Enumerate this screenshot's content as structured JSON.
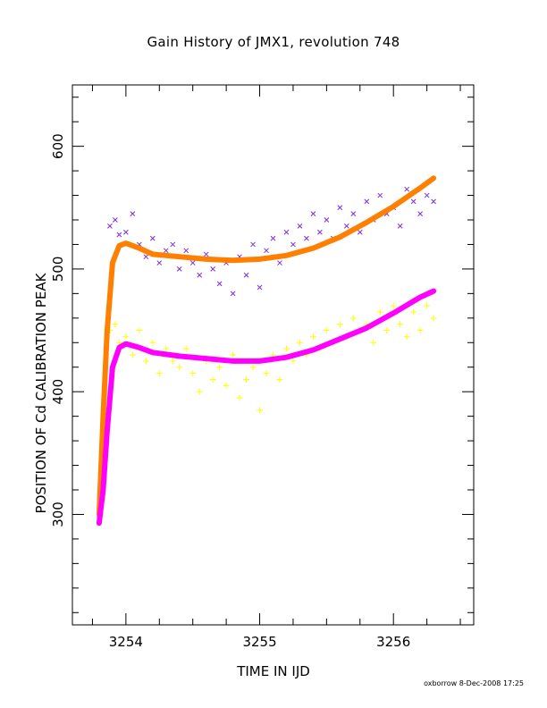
{
  "chart_data": {
    "type": "scatter",
    "title": "Gain History of JMX1, revolution 748",
    "xlabel": "TIME IN IJD",
    "ylabel": "POSITION OF Cd CALIBRATION PEAK",
    "xlim": [
      3253.6,
      3256.6
    ],
    "ylim": [
      210,
      650
    ],
    "xticks": [
      3254,
      3255,
      3256
    ],
    "yticks": [
      300,
      400,
      500,
      600
    ],
    "grid": false,
    "legend": "none",
    "series": [
      {
        "marker": "x",
        "color": "#7b2ee0",
        "x": [
          3253.88,
          3253.92,
          3253.95,
          3254.0,
          3254.05,
          3254.1,
          3254.15,
          3254.2,
          3254.25,
          3254.3,
          3254.35,
          3254.4,
          3254.45,
          3254.5,
          3254.55,
          3254.6,
          3254.65,
          3254.7,
          3254.75,
          3254.8,
          3254.85,
          3254.9,
          3254.95,
          3255.0,
          3255.05,
          3255.1,
          3255.15,
          3255.2,
          3255.25,
          3255.3,
          3255.35,
          3255.4,
          3255.45,
          3255.5,
          3255.55,
          3255.6,
          3255.65,
          3255.7,
          3255.75,
          3255.8,
          3255.85,
          3255.9,
          3255.95,
          3256.0,
          3256.05,
          3256.1,
          3256.15,
          3256.2,
          3256.25,
          3256.3
        ],
        "y": [
          535,
          540,
          528,
          530,
          545,
          520,
          510,
          525,
          505,
          515,
          520,
          500,
          515,
          505,
          495,
          512,
          500,
          488,
          505,
          480,
          510,
          495,
          520,
          485,
          515,
          525,
          505,
          530,
          520,
          535,
          525,
          545,
          530,
          540,
          525,
          550,
          535,
          545,
          530,
          555,
          540,
          560,
          545,
          550,
          535,
          565,
          555,
          545,
          560,
          555
        ]
      },
      {
        "marker": "+",
        "color": "#ffff00",
        "x": [
          3253.88,
          3253.92,
          3253.95,
          3254.0,
          3254.05,
          3254.1,
          3254.15,
          3254.2,
          3254.25,
          3254.3,
          3254.35,
          3254.4,
          3254.45,
          3254.5,
          3254.55,
          3254.6,
          3254.65,
          3254.7,
          3254.75,
          3254.8,
          3254.85,
          3254.9,
          3254.95,
          3255.0,
          3255.05,
          3255.1,
          3255.15,
          3255.2,
          3255.25,
          3255.3,
          3255.35,
          3255.4,
          3255.45,
          3255.5,
          3255.55,
          3255.6,
          3255.65,
          3255.7,
          3255.75,
          3255.8,
          3255.85,
          3255.9,
          3255.95,
          3256.0,
          3256.05,
          3256.1,
          3256.15,
          3256.2,
          3256.25,
          3256.3
        ],
        "y": [
          450,
          455,
          440,
          445,
          430,
          450,
          425,
          440,
          415,
          435,
          425,
          420,
          435,
          415,
          400,
          425,
          410,
          420,
          405,
          430,
          395,
          410,
          420,
          385,
          415,
          430,
          410,
          435,
          425,
          440,
          430,
          445,
          435,
          450,
          440,
          455,
          445,
          460,
          450,
          455,
          440,
          465,
          450,
          470,
          455,
          445,
          465,
          450,
          470,
          460
        ]
      },
      {
        "marker": "line",
        "color": "#ff7f00",
        "x": [
          3253.8,
          3253.83,
          3253.86,
          3253.9,
          3253.95,
          3254.0,
          3254.1,
          3254.2,
          3254.4,
          3254.6,
          3254.8,
          3255.0,
          3255.2,
          3255.4,
          3255.6,
          3255.8,
          3256.0,
          3256.2,
          3256.3
        ],
        "y": [
          300,
          380,
          450,
          505,
          519,
          521,
          517,
          512,
          510,
          508,
          507,
          508,
          511,
          517,
          526,
          538,
          551,
          566,
          574
        ]
      },
      {
        "marker": "line",
        "color": "#ff00ff",
        "x": [
          3253.8,
          3253.83,
          3253.86,
          3253.9,
          3253.95,
          3254.0,
          3254.1,
          3254.2,
          3254.4,
          3254.6,
          3254.8,
          3255.0,
          3255.2,
          3255.4,
          3255.6,
          3255.8,
          3256.0,
          3256.2,
          3256.3
        ],
        "y": [
          293,
          320,
          368,
          420,
          436,
          439,
          436,
          432,
          429,
          427,
          425,
          425,
          428,
          434,
          443,
          452,
          464,
          477,
          482
        ]
      }
    ]
  },
  "footer": {
    "credit": "oxborrow   8-Dec-2008 17:25"
  }
}
